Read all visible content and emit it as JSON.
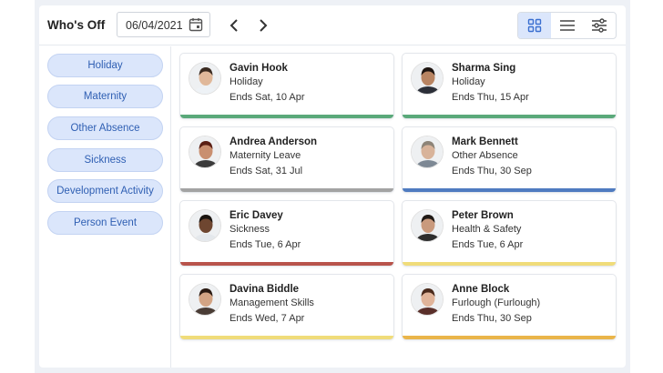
{
  "header": {
    "title": "Who's Off",
    "date_value": "06/04/2021",
    "prev_icon": "chevron-left-icon",
    "next_icon": "chevron-right-icon",
    "views": [
      "grid-view-icon",
      "list-view-icon",
      "filter-sliders-icon"
    ]
  },
  "sidebar": {
    "items": [
      {
        "label": "Holiday"
      },
      {
        "label": "Maternity"
      },
      {
        "label": "Other Absence"
      },
      {
        "label": "Sickness"
      },
      {
        "label": "Development Activity"
      },
      {
        "label": "Person Event"
      }
    ]
  },
  "colors": {
    "holiday": "#5aa97a",
    "maternity": "#a3a3a3",
    "other_absence": "#4f7bc0",
    "sickness": "#b8534b",
    "health_safety": "#f0dc7a",
    "management": "#f0dc7a",
    "furlough": "#eab54a"
  },
  "cards": [
    {
      "name": "Gavin Hook",
      "type": "Holiday",
      "ends": "Ends Sat, 10 Apr",
      "color": "#5aa97a",
      "skin": "#e0b89a",
      "hair": "#3a2a20",
      "shirt": "#eef2f6"
    },
    {
      "name": "Sharma Sing",
      "type": "Holiday",
      "ends": "Ends Thu, 15 Apr",
      "color": "#5aa97a",
      "skin": "#b88462",
      "hair": "#1d1410",
      "shirt": "#2b2f38"
    },
    {
      "name": "Andrea Anderson",
      "type": "Maternity Leave",
      "ends": "Ends Sat, 31 Jul",
      "color": "#a3a3a3",
      "skin": "#c98f70",
      "hair": "#5a1f14",
      "shirt": "#3b3b3b"
    },
    {
      "name": "Mark Bennett",
      "type": "Other Absence",
      "ends": "Ends Thu, 30 Sep",
      "color": "#4f7bc0",
      "skin": "#d8b39a",
      "hair": "#8d8478",
      "shirt": "#7d8894"
    },
    {
      "name": "Eric Davey",
      "type": "Sickness",
      "ends": "Ends Tue, 6 Apr",
      "color": "#b8534b",
      "skin": "#6e4630",
      "hair": "#1a1410",
      "shirt": "#e4e8ec"
    },
    {
      "name": "Peter Brown",
      "type": "Health & Safety",
      "ends": "Ends Tue, 6 Apr",
      "color": "#f0dc7a",
      "skin": "#c99a7d",
      "hair": "#1f1915",
      "shirt": "#2d2d2d"
    },
    {
      "name": "Davina Biddle",
      "type": "Management Skills",
      "ends": "Ends Wed, 7 Apr",
      "color": "#f0dc7a",
      "skin": "#d3a484",
      "hair": "#2a1a12",
      "shirt": "#4a3c35"
    },
    {
      "name": "Anne Block",
      "type": "Furlough (Furlough)",
      "ends": "Ends Thu, 30 Sep",
      "color": "#eab54a",
      "skin": "#e0b49a",
      "hair": "#4a2a1c",
      "shirt": "#5a2f2a"
    }
  ]
}
